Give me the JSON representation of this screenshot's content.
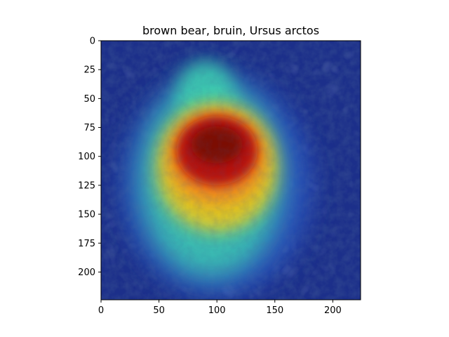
{
  "chart_data": {
    "type": "heatmap",
    "title": "brown bear, bruin, Ursus arctos",
    "xlabel": "",
    "ylabel": "",
    "image_size": [
      224,
      224
    ],
    "xlim": [
      0,
      224
    ],
    "ylim": [
      224,
      0
    ],
    "x_ticks": [
      0,
      50,
      100,
      150,
      200
    ],
    "y_ticks": [
      0,
      25,
      50,
      75,
      100,
      125,
      150,
      175,
      200
    ],
    "colormap": "jet",
    "grid": false,
    "legend": "none",
    "overlay": "saliency heatmap blended over photograph of a brown bear in vegetation",
    "activation_peak": {
      "x": 100,
      "y": 95
    },
    "colors": {
      "background": "#1c2f8a",
      "high": "#b40f0a",
      "mid": "#f0c814",
      "low_mid": "#3ccfb0",
      "low": "#233a9c"
    }
  }
}
